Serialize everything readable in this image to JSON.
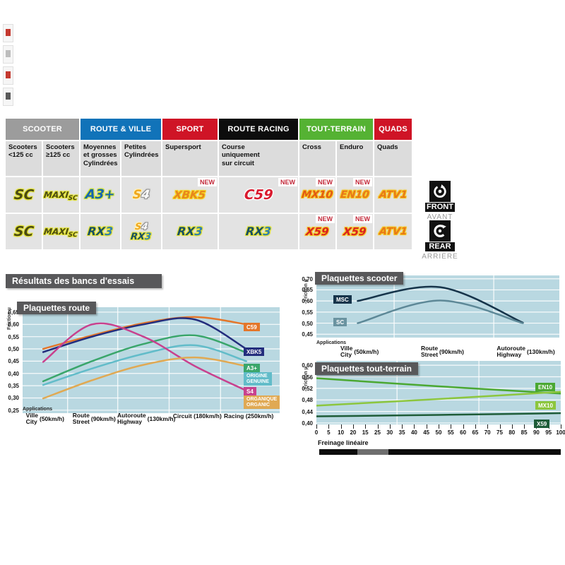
{
  "section_title": "Résultats des bancs d'essais",
  "sides": {
    "front": {
      "en": "FRONT",
      "fr": "AVANT"
    },
    "rear": {
      "en": "REAR",
      "fr": "ARRIÈRE"
    }
  },
  "table": {
    "new_label": "NEW",
    "groups": [
      {
        "label": "SCOOTER",
        "color": "#9c9c9c",
        "span": 2
      },
      {
        "label": "ROUTE & VILLE",
        "color": "#1173b9",
        "span": 2
      },
      {
        "label": "SPORT",
        "color": "#cf1426",
        "span": 1
      },
      {
        "label": "ROUTE RACING",
        "color": "#0d0d0d",
        "span": 1
      },
      {
        "label": "TOUT-TERRAIN",
        "color": "#55b233",
        "span": 2
      },
      {
        "label": "QUADS",
        "color": "#cf1426",
        "span": 1
      }
    ],
    "columns": [
      "Scooters\n<125 cc",
      "Scooters\n≥125 cc",
      "Moyennes\net grosses\nCylindrées",
      "Petites\nCylindrées",
      "Supersport",
      "Course\nuniquement\nsur circuit",
      "Cross",
      "Enduro",
      "Quads"
    ],
    "front_row": [
      {
        "logo": "SC"
      },
      {
        "logo": "MAXISC"
      },
      {
        "logo": "A3PLUS"
      },
      {
        "logo": "S4"
      },
      {
        "logo": "XBK5",
        "new": true
      },
      {
        "logo": "C59",
        "new": true
      },
      {
        "logo": "MX10",
        "new": true
      },
      {
        "logo": "EN10",
        "new": true
      },
      {
        "logo": "ATV1"
      }
    ],
    "rear_row": [
      {
        "logo": "SC"
      },
      {
        "logo": "MAXISC"
      },
      {
        "logo": "RX3"
      },
      {
        "logos": [
          "S4_SMALL",
          "RX3_SMALL"
        ]
      },
      {
        "logo": "RX3"
      },
      {
        "logo": "RX3"
      },
      {
        "logo": "X59",
        "new": true
      },
      {
        "logo": "X59",
        "new": true
      },
      {
        "logo": "ATV1"
      }
    ]
  },
  "logos": {
    "SC": {
      "size": 19,
      "parts": [
        {
          "t": "SC",
          "c": "#4a4a12",
          "o": "#e2e232"
        }
      ]
    },
    "MAXISC": {
      "size": 12,
      "parts": [
        {
          "t": "MAXI",
          "c": "#4a4a12",
          "o": "#e2e232"
        },
        {
          "t": "SC",
          "c": "#4a4a12",
          "o": "#e2e232",
          "size": 9,
          "dy": 3
        }
      ]
    },
    "A3PLUS": {
      "size": 18,
      "parts": [
        {
          "t": "A3+",
          "c": "#1565ae",
          "o": "#cde22f"
        }
      ]
    },
    "S4": {
      "size": 17,
      "parts": [
        {
          "t": "S",
          "c": "#f0a81e",
          "o": "#fff2b8"
        },
        {
          "t": "4",
          "c": "#fafafa",
          "o": "#8f8f8f"
        }
      ]
    },
    "S4_SMALL": {
      "size": 13,
      "parts": [
        {
          "t": "S",
          "c": "#f0a81e",
          "o": "#fff2b8"
        },
        {
          "t": "4",
          "c": "#fafafa",
          "o": "#8f8f8f"
        }
      ]
    },
    "XBK5": {
      "size": 15,
      "parts": [
        {
          "t": "XBK5",
          "c": "#e8861c",
          "o": "#f6d51f"
        }
      ]
    },
    "C59": {
      "size": 19,
      "parts": [
        {
          "t": "C59",
          "c": "#d91a2e",
          "o": "#ffffff"
        }
      ]
    },
    "MX10": {
      "size": 14,
      "parts": [
        {
          "t": "MX10",
          "c": "#e25812",
          "o": "#f6c51f"
        }
      ]
    },
    "EN10": {
      "size": 14,
      "parts": [
        {
          "t": "EN10",
          "c": "#e87818",
          "o": "#f6c51f"
        }
      ]
    },
    "ATV1": {
      "size": 14,
      "parts": [
        {
          "t": "ATV1",
          "c": "#e87818",
          "o": "#f6c51f"
        }
      ]
    },
    "RX3": {
      "size": 16,
      "parts": [
        {
          "t": "RX",
          "c": "#174f63",
          "o": "#e2e232"
        },
        {
          "t": "3",
          "c": "#2e7eb0",
          "o": "#e2e232"
        }
      ]
    },
    "RX3_SMALL": {
      "size": 13,
      "parts": [
        {
          "t": "RX",
          "c": "#174f63",
          "o": "#e2e232"
        },
        {
          "t": "3",
          "c": "#2e7eb0",
          "o": "#e2e232"
        }
      ]
    },
    "X59": {
      "size": 15,
      "parts": [
        {
          "t": "X59",
          "c": "#d92020",
          "o": "#f6c51f"
        }
      ]
    }
  },
  "chart_data": [
    {
      "id": "route",
      "type": "line",
      "title": "Plaquettes route",
      "ylabel": "Friction µ",
      "x_caption": "Applications",
      "grid": true,
      "legend_position": "right",
      "ylim": [
        0.238,
        0.67
      ],
      "yticks": [
        0.65,
        0.6,
        0.55,
        0.5,
        0.45,
        0.4,
        0.35,
        0.3,
        0.25
      ],
      "categories": [
        {
          "fr": "Ville",
          "en": "City",
          "speed": "(50km/h)"
        },
        {
          "fr": "Route",
          "en": "Street",
          "speed": "(90km/h)"
        },
        {
          "fr": "Autoroute",
          "en": "Highway",
          "speed": "(130km/h)"
        },
        {
          "fr": "Circuit",
          "en": "",
          "speed": "(180km/h)"
        },
        {
          "fr": "Racing",
          "en": "",
          "speed": "(250km/h)"
        }
      ],
      "series": [
        {
          "name": "C59",
          "color": "#e4762a",
          "values": [
            0.5,
            0.555,
            0.605,
            0.63,
            0.6
          ],
          "legend": {
            "text": "C59",
            "bg": "#e4762a"
          }
        },
        {
          "name": "XBK5",
          "color": "#232d7d",
          "values": [
            0.487,
            0.55,
            0.6,
            0.62,
            0.5
          ],
          "legend": {
            "text": "XBK5",
            "bg": "#232d7d"
          }
        },
        {
          "name": "A3+",
          "color": "#3aa66b",
          "values": [
            0.368,
            0.45,
            0.52,
            0.555,
            0.485
          ],
          "legend": {
            "text": "A3+",
            "bg": "#3aa66b"
          }
        },
        {
          "name": "ORIGINE / GENUINE",
          "color": "#62bcc9",
          "values": [
            0.353,
            0.42,
            0.48,
            0.515,
            0.45
          ],
          "legend": {
            "text": "ORIGINE\nGENUINE",
            "bg": "#62bcc9"
          }
        },
        {
          "name": "S4",
          "color": "#c8418e",
          "values": [
            0.447,
            0.6,
            0.55,
            0.43,
            0.33
          ],
          "legend": {
            "text": "S4",
            "bg": "#c8418e"
          }
        },
        {
          "name": "ORGANIQUE / ORGANIC",
          "color": "#e0a953",
          "values": [
            0.298,
            0.372,
            0.435,
            0.465,
            0.43
          ],
          "legend": {
            "text": "ORGANIQUE\nORGANIC",
            "bg": "#e0a953"
          }
        }
      ]
    },
    {
      "id": "scooter",
      "type": "line",
      "title": "Plaquettes scooter",
      "ylabel": "Friction µ",
      "x_caption": "Applications",
      "grid": true,
      "legend_position": "left",
      "ylim": [
        0.435,
        0.715
      ],
      "yticks": [
        0.7,
        0.65,
        0.6,
        0.55,
        0.5,
        0.45
      ],
      "categories": [
        {
          "fr": "Ville",
          "en": "City",
          "speed": "(50km/h)"
        },
        {
          "fr": "Route",
          "en": "Street",
          "speed": "(90km/h)"
        },
        {
          "fr": "Autoroute",
          "en": "Highway",
          "speed": "(130km/h)"
        }
      ],
      "series": [
        {
          "name": "MSC",
          "color": "#16344a",
          "values": [
            0.6,
            0.662,
            0.502
          ],
          "legend": {
            "text": "MSC",
            "bg": "#16344a"
          }
        },
        {
          "name": "SC",
          "color": "#5d8897",
          "values": [
            0.5,
            0.602,
            0.5
          ],
          "legend": {
            "text": "SC",
            "bg": "#6a93a0"
          }
        }
      ]
    },
    {
      "id": "tt",
      "type": "line",
      "title": "Plaquettes tout-terrain",
      "ylabel": "Friction µ",
      "xlabel": "Freinage linéaire",
      "grid": true,
      "legend_position": "right",
      "ylim": [
        0.395,
        0.615
      ],
      "yticks": [
        0.6,
        0.56,
        0.52,
        0.48,
        0.44,
        0.4
      ],
      "xlim": [
        0,
        100
      ],
      "xticks": [
        "0",
        "5",
        "10",
        "20",
        "15",
        "25",
        "30",
        "35",
        "40",
        "45",
        "50",
        "55",
        "60",
        "65",
        "70",
        "75",
        "80",
        "85",
        "90",
        "95",
        "100"
      ],
      "series": [
        {
          "name": "EN10",
          "color": "#4ba832",
          "x": [
            0,
            50,
            100
          ],
          "values": [
            0.555,
            0.527,
            0.502
          ],
          "legend": {
            "text": "EN10",
            "bg": "#4ba832"
          }
        },
        {
          "name": "MX10",
          "color": "#8cc63e",
          "x": [
            0,
            50,
            100
          ],
          "values": [
            0.46,
            0.483,
            0.508
          ],
          "legend": {
            "text": "MX10",
            "bg": "#8cc63e"
          }
        },
        {
          "name": "X59",
          "color": "#1e5c38",
          "x": [
            0,
            50,
            100
          ],
          "values": [
            0.423,
            0.428,
            0.434
          ],
          "legend": {
            "text": "X59",
            "bg": "#1e5c38"
          }
        }
      ]
    }
  ]
}
